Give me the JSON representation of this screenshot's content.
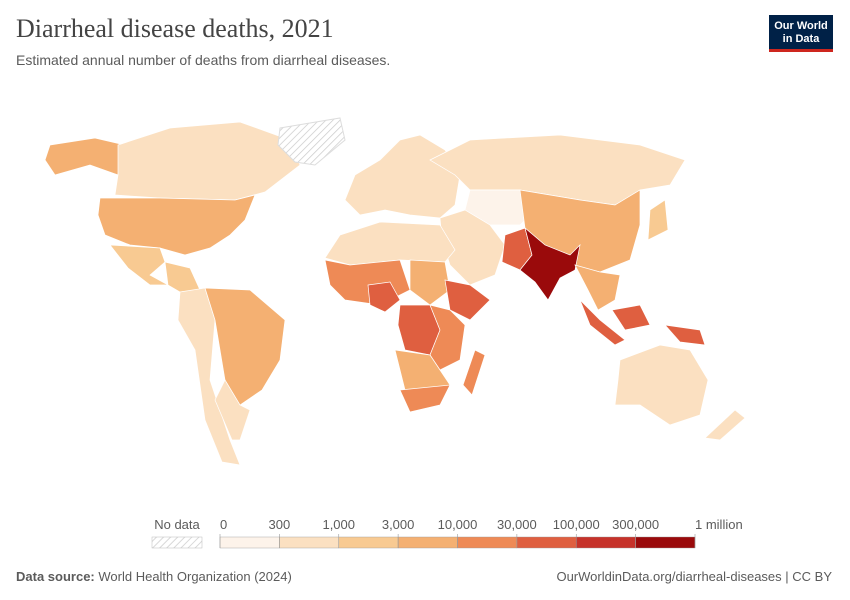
{
  "header": {
    "title": "Diarrheal disease deaths, 2021",
    "subtitle": "Estimated annual number of deaths from diarrheal diseases.",
    "logo": [
      "Our World",
      "in Data"
    ]
  },
  "legend": {
    "no_data": "No data",
    "ticks": [
      0,
      300,
      {
        "value": 1000,
        "label": "1,000"
      },
      {
        "value": 3000,
        "label": "3,000"
      },
      {
        "value": 10000,
        "label": "10,000"
      },
      {
        "value": 30000,
        "label": "30,000"
      },
      {
        "value": 100000,
        "label": "100,000"
      },
      {
        "value": 300000,
        "label": "300,000"
      },
      {
        "value": 1000000,
        "label": "1 million"
      }
    ],
    "colors": [
      "#fdf3ea",
      "#fbe0c1",
      "#f8ca92",
      "#f4b072",
      "#ee8a56",
      "#df5f40",
      "#c6322a",
      "#9a0a0b"
    ]
  },
  "footer": {
    "source_label": "Data source:",
    "source": "World Health Organization (2024)",
    "url": "OurWorldinData.org/diarrheal-diseases | CC BY"
  }
}
